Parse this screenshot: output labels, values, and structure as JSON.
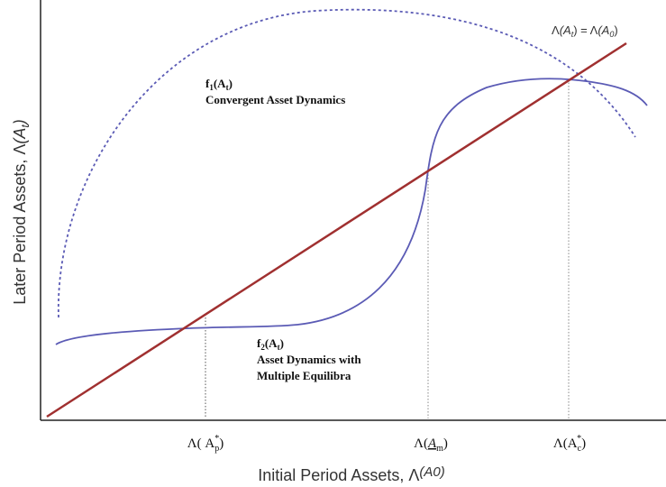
{
  "axes": {
    "x_label": [
      "Initial Period Assets, Λ",
      "(A",
      "0",
      ")"
    ],
    "y_label": [
      "Later Period Assets, Λ",
      "(A",
      "t",
      ")"
    ]
  },
  "line_label": [
    "Λ",
    "(A",
    "t",
    ") = ",
    "Λ",
    "(A",
    "0",
    ")"
  ],
  "curve1": {
    "name": [
      "f",
      "1",
      "(A",
      "t",
      ")"
    ],
    "description": "Convergent Asset Dynamics"
  },
  "curve2": {
    "name": [
      "f",
      "2",
      "(A",
      "t",
      ")"
    ],
    "description": [
      "Asset Dynamics with",
      "Multiple Equilibra"
    ]
  },
  "equilibria": [
    [
      "Λ( A",
      "p",
      "*",
      ")"
    ],
    [
      "Λ(",
      "A",
      "m",
      ")"
    ],
    [
      "Λ(A",
      "c",
      "*",
      ")"
    ]
  ]
}
